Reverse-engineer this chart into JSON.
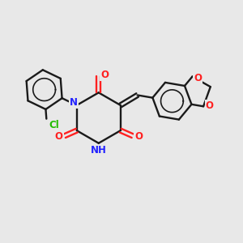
{
  "bg_color": "#e8e8e8",
  "bond_color": "#1a1a1a",
  "N_color": "#2222ff",
  "O_color": "#ff2020",
  "Cl_color": "#22bb00",
  "lw": 1.7,
  "fs": 8.5,
  "xlim": [
    0,
    10
  ],
  "ylim": [
    0,
    10
  ]
}
